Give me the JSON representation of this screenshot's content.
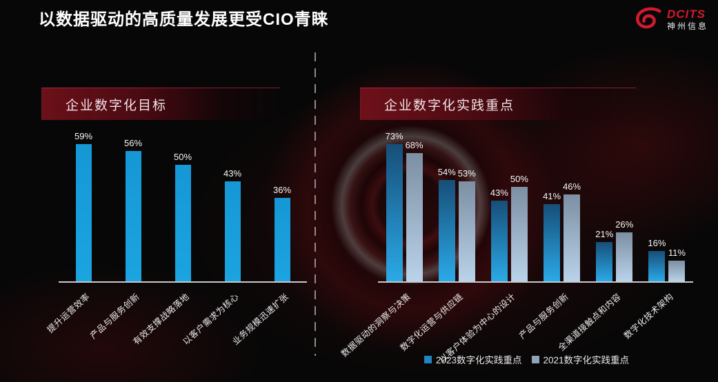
{
  "page": {
    "title": "以数据驱动的高质量发展更受CIO青睐"
  },
  "logo": {
    "brand": "DCITS",
    "company": "神州信息",
    "accent_color": "#d11a2d"
  },
  "left_panel": {
    "header": "企业数字化目标"
  },
  "right_panel": {
    "header": "企业数字化实践重点"
  },
  "chart_data": [
    {
      "type": "bar",
      "title": "企业数字化目标",
      "categories": [
        "提升运营效率",
        "产品与服务创新",
        "有效支撑战略落地",
        "以客户需求为核心",
        "业务规模迅速扩张"
      ],
      "values": [
        59,
        56,
        50,
        43,
        36
      ],
      "unit": "%",
      "ylim": [
        0,
        70
      ],
      "grid": false,
      "legend_position": "none",
      "bar_color_top": "#1697d6",
      "bar_color_bottom": "#1ba4e0",
      "axis_color": "#c9c9c9"
    },
    {
      "type": "bar",
      "title": "企业数字化实践重点",
      "categories": [
        "数据驱动的洞察与决策",
        "数字化运营与供应链",
        "以客户体验为中心的设计",
        "产品与服务创新",
        "全渠道接触点和内容",
        "数字化技术架构"
      ],
      "series": [
        {
          "name": "2023数字化实践重点",
          "values": [
            73,
            54,
            43,
            41,
            21,
            16
          ],
          "color_top": "#174e78",
          "color_bottom": "#2aaae8",
          "legend_color": "#1f86c0"
        },
        {
          "name": "2021数字化实践重点",
          "values": [
            68,
            53,
            50,
            46,
            26,
            11
          ],
          "color_top": "#7c8fa3",
          "color_bottom": "#bad3ea",
          "legend_color": "#8fa3b8"
        }
      ],
      "unit": "%",
      "ylim": [
        0,
        80
      ],
      "grid": false,
      "legend_position": "bottom",
      "axis_color": "#c9c9c9"
    }
  ]
}
